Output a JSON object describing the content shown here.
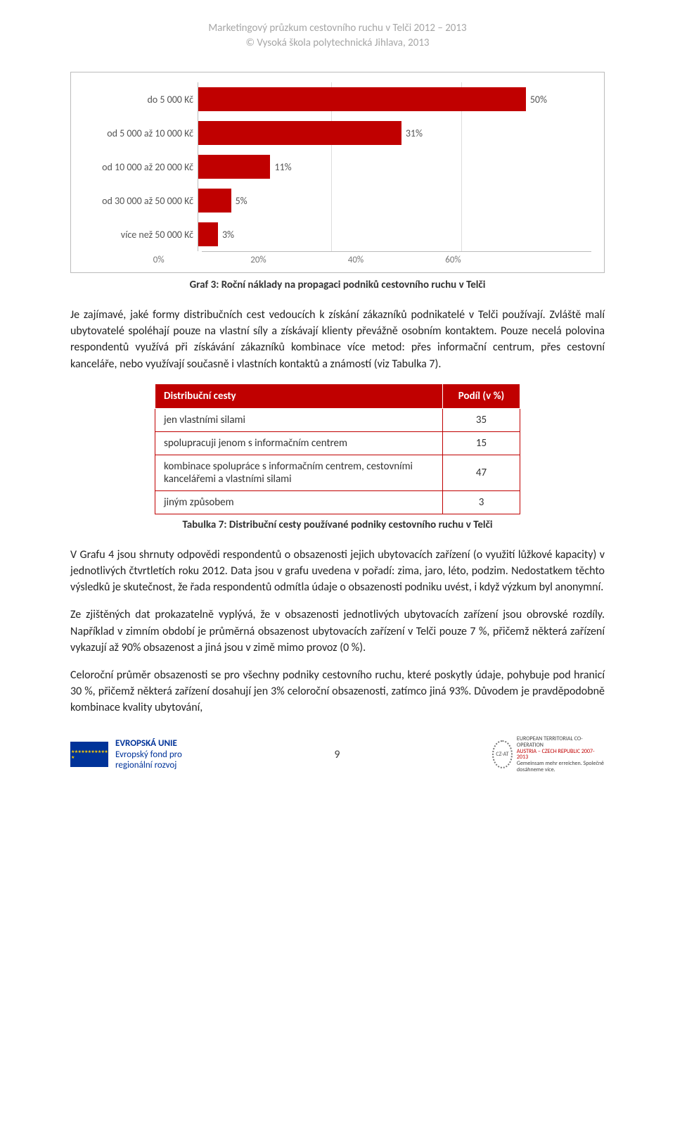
{
  "header": {
    "line1": "Marketingový průzkum cestovního ruchu v Telči 2012 – 2013",
    "line2": "© Vysoká škola polytechnická Jihlava, 2013"
  },
  "chart": {
    "type": "bar-horizontal",
    "categories": [
      "do 5 000 Kč",
      "od 5 000 až 10 000 Kč",
      "od 10 000 až 20 000 Kč",
      "od 30 000 až 50 000 Kč",
      "více než 50 000 Kč"
    ],
    "values": [
      50,
      31,
      11,
      5,
      3
    ],
    "value_labels": [
      "50%",
      "31%",
      "11%",
      "5%",
      "3%"
    ],
    "bar_color": "#c00000",
    "xlim": [
      0,
      60
    ],
    "xtick_step": 20,
    "xtick_labels": [
      "0%",
      "20%",
      "40%",
      "60%"
    ],
    "background_color": "#ffffff",
    "grid_color": "#dddddd",
    "label_fontsize": 14,
    "caption": "Graf 3: Roční náklady na propagaci podniků cestovního ruchu v Telči"
  },
  "para1": "Je zajímavé, jaké formy distribučních cest vedoucích k získání zákazníků podnikatelé v Telči používají. Zvláště malí ubytovatelé spoléhají pouze na vlastní síly a získávají klienty převážně osobním kontaktem. Pouze necelá polovina respondentů využívá při získávání zákazníků kombinace více metod: přes informační centrum, přes cestovní kanceláře, nebo využívají současně i vlastních kontaktů a známostí (viz Tabulka 7).",
  "table": {
    "header_distribution": "Distribuční cesty",
    "header_share": "Podíl (v %)",
    "rows": [
      {
        "label": "jen vlastními silami",
        "value": "35"
      },
      {
        "label": "spolupracuji jenom s informačním centrem",
        "value": "15"
      },
      {
        "label": "kombinace spolupráce s informačním centrem, cestovními kancelářemi a vlastními silami",
        "value": "47"
      },
      {
        "label": "jiným způsobem",
        "value": "3"
      }
    ],
    "caption": "Tabulka 7: Distribuční cesty používané podniky cestovního ruchu v Telči",
    "header_bg": "#c00000",
    "header_fg": "#ffffff",
    "border_color": "#c00000"
  },
  "para2": "V Grafu 4 jsou shrnuty odpovědi respondentů o obsazenosti jejich ubytovacích zařízení (o využití lůžkové kapacity) v jednotlivých čtvrtletích roku 2012. Data jsou v grafu uvedena v pořadí: zima, jaro, léto, podzim. Nedostatkem těchto výsledků je skutečnost, že řada respondentů odmítla údaje o obsazenosti podniku uvést, i když výzkum byl anonymní.",
  "para3": "Ze zjištěných dat prokazatelně vyplývá, že v obsazenosti jednotlivých ubytovacích zařízení jsou obrovské rozdíly. Například v zimním období je průměrná obsazenost ubytovacích zařízení v Telči pouze 7 %, přičemž některá zařízení vykazují až 90% obsazenost a jiná jsou v zimě mimo provoz (0 %).",
  "para4": "Celoroční průměr obsazenosti se pro všechny podniky cestovního ruchu, které poskytly údaje, pohybuje pod hranicí 30 %, přičemž některá zařízení dosahují jen 3% celoroční obsazenosti, zatímco jiná 93%. Důvodem je pravděpodobně kombinace kvality ubytování,",
  "footer": {
    "eu_title": "EVROPSKÁ UNIE",
    "eu_sub": "Evropský fond pro\nregionální rozvoj",
    "page_number": "9",
    "program_l1": "EUROPEAN TERRITORIAL CO-OPERATION",
    "program_l2": "AUSTRIA – CZECH REPUBLIC 2007-2013",
    "program_l3": "Gemeinsam mehr erreichen. Společně dosáhneme více."
  }
}
